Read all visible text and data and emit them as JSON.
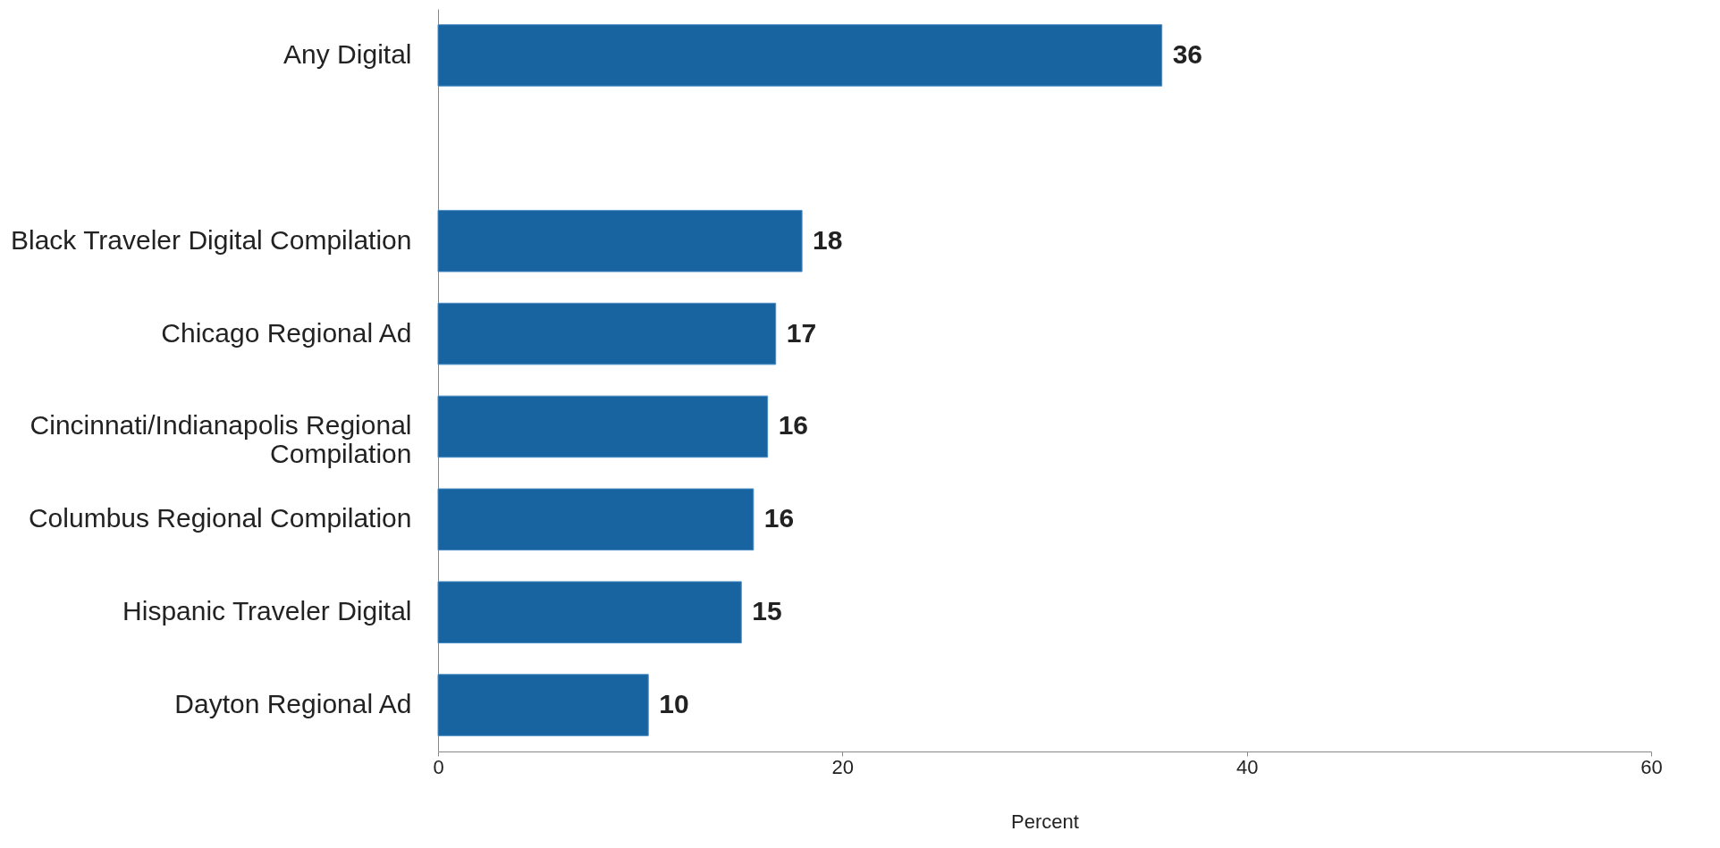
{
  "chart_data": {
    "type": "bar",
    "orientation": "horizontal",
    "xlabel": "Percent",
    "categories": [
      "Any Digital",
      null,
      "Black Traveler Digital Compilation",
      "Chicago Regional Ad",
      "Cincinnati/Indianapolis Regional Compilation",
      "Columbus Regional Compilation",
      "Hispanic Traveler Digital",
      "Dayton Regional Ad"
    ],
    "values": [
      35.8,
      null,
      18.0,
      16.7,
      16.3,
      15.6,
      15.0,
      10.4
    ],
    "value_labels": [
      "36",
      null,
      "18",
      "17",
      "16",
      "16",
      "15",
      "10"
    ],
    "color": "#1764a0",
    "xlim": [
      0,
      60
    ],
    "xticks": [
      0,
      20,
      40,
      60
    ],
    "grid": false
  }
}
